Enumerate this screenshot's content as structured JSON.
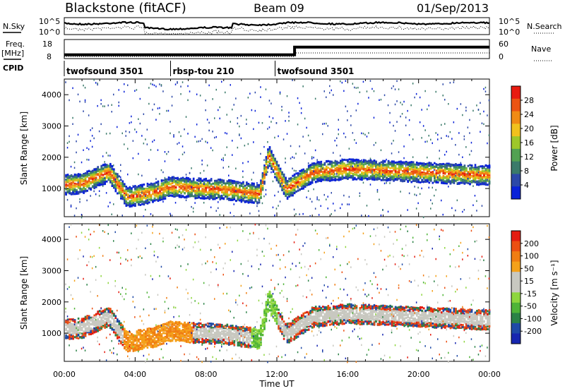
{
  "header": {
    "station": "Blackstone (fitACF)",
    "beam": "Beam 09",
    "date": "01/Sep/2013"
  },
  "top_panels": {
    "nsky_label": "N.Sky",
    "nsearch_label": "N.Search",
    "noise_ticks": [
      "10^5",
      "10^0"
    ],
    "freq_label": "Freq.",
    "freq_unit": "[MHz]",
    "freq_ticks": [
      "18",
      "8"
    ],
    "nave_label": "Nave",
    "nave_ticks": [
      "60",
      "0"
    ],
    "cpid_label": "CPID",
    "cpid_segments": [
      {
        "name": "twofsound 3501",
        "start_h": 0.0,
        "end_h": 6.0
      },
      {
        "name": "rbsp-tou 210",
        "start_h": 6.0,
        "end_h": 11.9
      },
      {
        "name": "twofsound 3501",
        "start_h": 11.9,
        "end_h": 24.0
      }
    ]
  },
  "axes": {
    "xlabel": "Time UT",
    "x_ticks": [
      "00:00",
      "04:00",
      "08:00",
      "12:00",
      "16:00",
      "20:00",
      "00:00"
    ],
    "ylabel": "Slant Range [km]",
    "y_ticks": [
      "1000",
      "2000",
      "3000",
      "4000"
    ]
  },
  "power_colorbar": {
    "label": "Power [dB]",
    "ticks": [
      "4",
      "8",
      "12",
      "16",
      "20",
      "24",
      "28"
    ],
    "colors": [
      "#0a22d8",
      "#2c48a8",
      "#3a7a6a",
      "#52a152",
      "#9ec72a",
      "#f1c11d",
      "#f08b14",
      "#ec5412",
      "#e81b10"
    ]
  },
  "velocity_colorbar": {
    "label": "Velocity [m s⁻¹]",
    "ticks": [
      "200",
      "100",
      "50",
      "15",
      "-15",
      "-50",
      "-100",
      "-200"
    ],
    "colors": [
      "#1726b0",
      "#1f4aa6",
      "#2b8246",
      "#4fb438",
      "#8ed63e",
      "#c8c8c0",
      "#c8c8c0",
      "#f4a11a",
      "#f07d12",
      "#ec4f12",
      "#e41c10"
    ]
  },
  "chart_data": {
    "type": "heatmap",
    "title": "Blackstone (fitACF)  Beam 09  01/Sep/2013",
    "xlabel": "Time UT",
    "ylabel": "Slant Range [km]",
    "xlim_hours": [
      0,
      24
    ],
    "ylim_km": [
      100,
      4500
    ],
    "panels": [
      "Power [dB]",
      "Velocity [m s⁻¹]"
    ],
    "backscatter_band_km": [
      {
        "t": 0.0,
        "center": 1150
      },
      {
        "t": 1.0,
        "center": 1200
      },
      {
        "t": 2.0,
        "center": 1450
      },
      {
        "t": 2.5,
        "center": 1550
      },
      {
        "t": 3.5,
        "center": 750
      },
      {
        "t": 5.0,
        "center": 900
      },
      {
        "t": 6.0,
        "center": 1100
      },
      {
        "t": 7.0,
        "center": 1050
      },
      {
        "t": 9.0,
        "center": 1000
      },
      {
        "t": 11.0,
        "center": 850
      },
      {
        "t": 11.5,
        "center": 2100
      },
      {
        "t": 12.5,
        "center": 1000
      },
      {
        "t": 14.0,
        "center": 1550
      },
      {
        "t": 16.0,
        "center": 1650
      },
      {
        "t": 20.0,
        "center": 1550
      },
      {
        "t": 24.0,
        "center": 1450
      }
    ],
    "frequency_mhz": [
      {
        "t": 0,
        "value": 10
      },
      {
        "t": 13,
        "value": 10
      },
      {
        "t": 13,
        "value": 14
      },
      {
        "t": 24,
        "value": 14
      }
    ],
    "grid": true
  }
}
